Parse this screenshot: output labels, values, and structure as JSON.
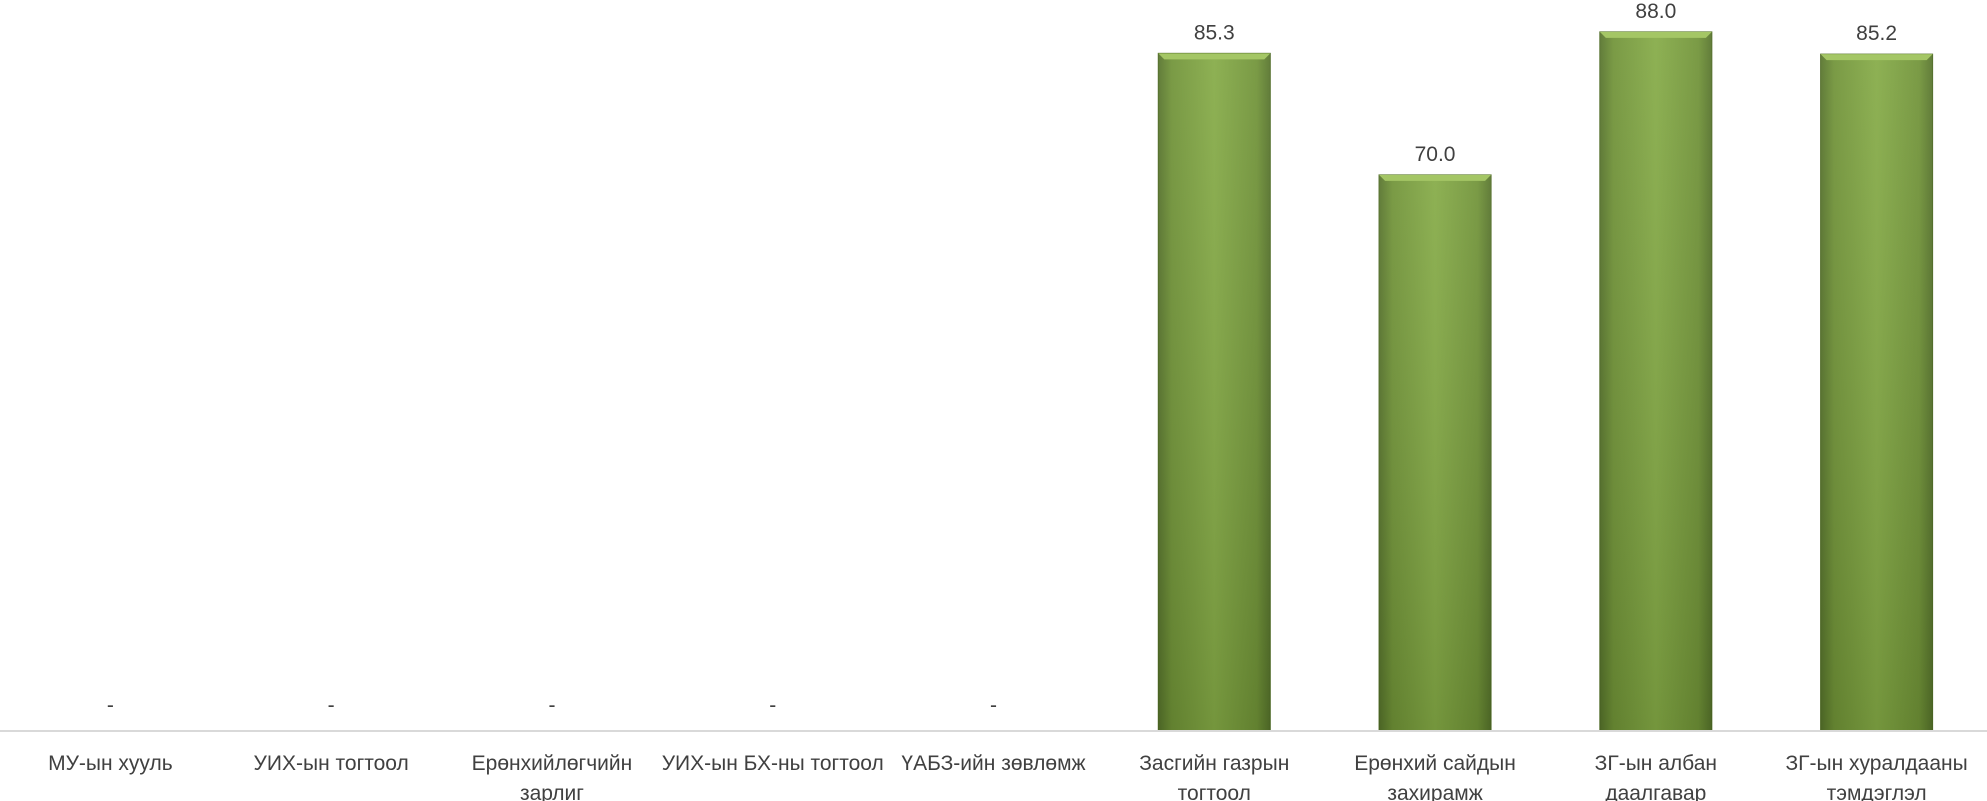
{
  "chart_data": {
    "type": "bar",
    "categories": [
      [
        "МУ-ын хууль"
      ],
      [
        "УИХ-ын тогтоол"
      ],
      [
        "Ерөнхийлөгчийн",
        "зарлиг"
      ],
      [
        "УИХ-ын БХ-ны тогтоол"
      ],
      [
        "ҮАБЗ-ийн зөвлөмж"
      ],
      [
        "Засгийн газрын",
        "тогтоол"
      ],
      [
        "Ерөнхий сайдын",
        "захирамж"
      ],
      [
        "ЗГ-ын албан",
        "даалгавар"
      ],
      [
        "ЗГ-ын хуралдааны",
        "тэмдэглэл"
      ]
    ],
    "values": [
      null,
      null,
      null,
      null,
      null,
      85.3,
      70.0,
      88.0,
      85.2
    ],
    "data_labels": [
      "-",
      "-",
      "-",
      "-",
      "-",
      "85.3",
      "70.0",
      "88.0",
      "85.2"
    ],
    "ylim": [
      0,
      90
    ],
    "grid": false,
    "legend": "none",
    "bar_color": "#7da33f",
    "bar_color_dark": "#5b7a2c",
    "axis_color": "#d9d9d9",
    "text_color": "#404040"
  }
}
